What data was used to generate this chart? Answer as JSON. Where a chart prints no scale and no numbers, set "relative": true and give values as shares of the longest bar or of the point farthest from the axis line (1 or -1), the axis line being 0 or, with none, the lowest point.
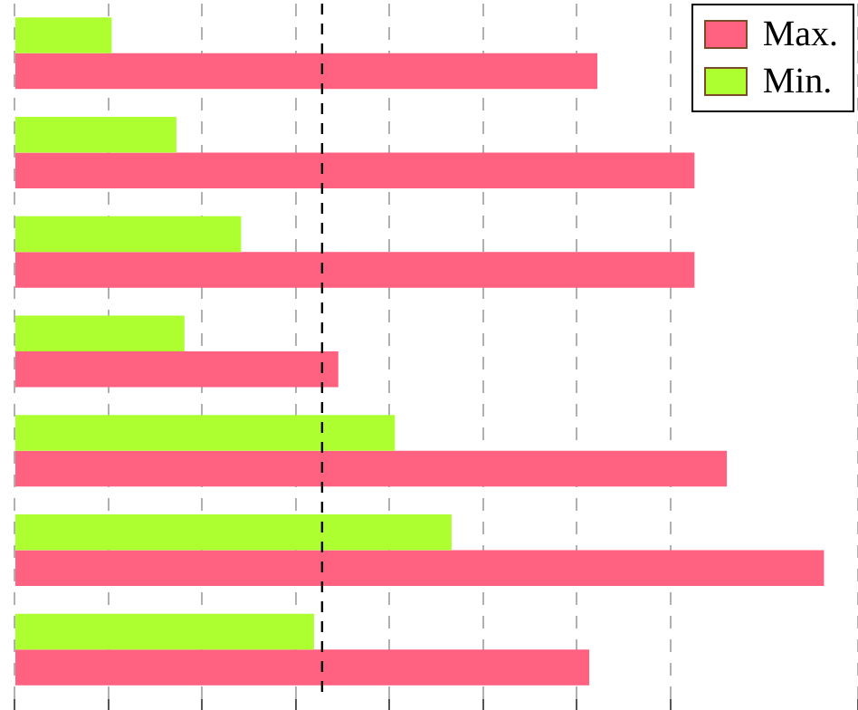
{
  "chart_data": {
    "type": "bar",
    "orientation": "horizontal",
    "relative": true,
    "categories": [
      null,
      null,
      null,
      null,
      null,
      null,
      null
    ],
    "series": [
      {
        "name": "Max.",
        "color": "#ff6181",
        "values": [
          0.72,
          0.84,
          0.84,
          0.4,
          0.88,
          1,
          0.71
        ]
      },
      {
        "name": "Min.",
        "color": "#adff2f",
        "values": [
          0.12,
          0.2,
          0.28,
          0.21,
          0.47,
          0.54,
          0.37
        ]
      }
    ],
    "ref_lines": [
      {
        "axis": "x",
        "value": 0.38,
        "color": "#000000",
        "line_style": "dashed"
      }
    ],
    "grid": "x",
    "legend": "top right"
  }
}
